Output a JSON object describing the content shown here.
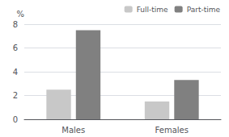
{
  "chart_data": {
    "type": "bar",
    "categories": [
      "Males",
      "Females"
    ],
    "series": [
      {
        "name": "Full-time",
        "color": "#c8c8c8",
        "values": [
          2.5,
          1.5
        ]
      },
      {
        "name": "Part-time",
        "color": "#808080",
        "values": [
          7.5,
          3.3
        ]
      }
    ],
    "ylabel": "%",
    "ylim": [
      0,
      8
    ],
    "yticks": [
      0,
      2,
      4,
      6,
      8
    ],
    "grid": true,
    "legend": "upper right"
  }
}
